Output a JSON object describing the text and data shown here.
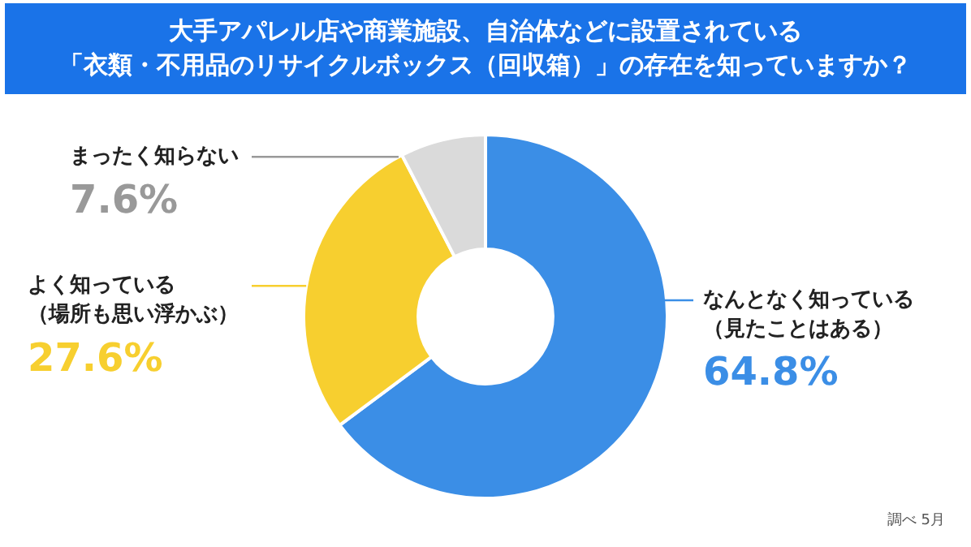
{
  "chart_data": {
    "type": "donut",
    "title": "大手アパレル店や商業施設、自治体などに設置されている「衣類・不用品のリサイクルボックス（回収箱）」の存在を知っていますか？",
    "categories": [
      "なんとなく知っている（見たことはある）",
      "よく知っている（場所も思い浮かぶ）",
      "まったく知らない"
    ],
    "values": [
      64.8,
      27.6,
      7.6
    ],
    "colors": [
      "#3b8ee6",
      "#f7cf2f",
      "#dadada"
    ],
    "value_labels": [
      "64.8%",
      "27.6%",
      "7.6%"
    ],
    "annotations": [
      "調べ 5月"
    ]
  }
}
